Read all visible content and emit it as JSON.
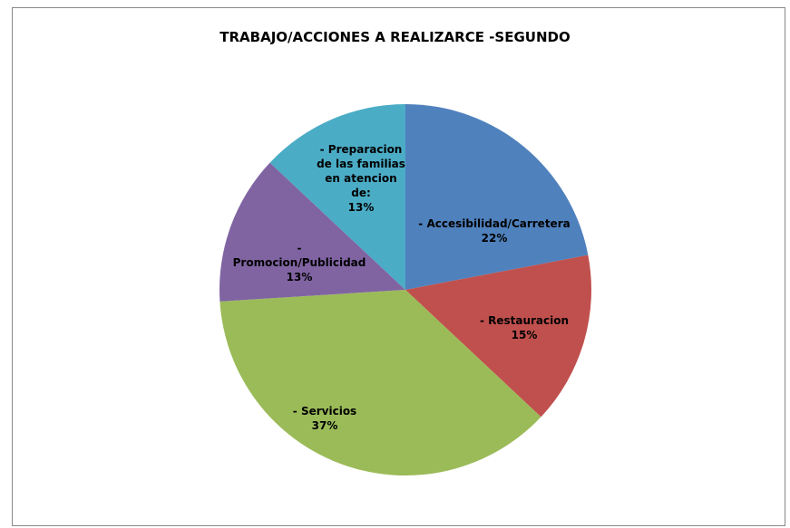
{
  "chart_data": {
    "type": "pie",
    "title": "TRABAJO/ACCIONES A REALIZARCE -SEGUNDO",
    "categories": [
      "- Accesibilidad/Carretera",
      "- Restauracion",
      "-  Servicios",
      "- Promocion/Publicidad",
      "- Preparacion de las familias en atencion de:"
    ],
    "values": [
      22,
      15,
      37,
      13,
      13
    ],
    "value_labels": [
      "22%",
      "15%",
      "37%",
      "13%",
      "13%"
    ],
    "colors": [
      "#4f81bd",
      "#c0504d",
      "#9bbb59",
      "#8064a2",
      "#4bacc6"
    ]
  }
}
